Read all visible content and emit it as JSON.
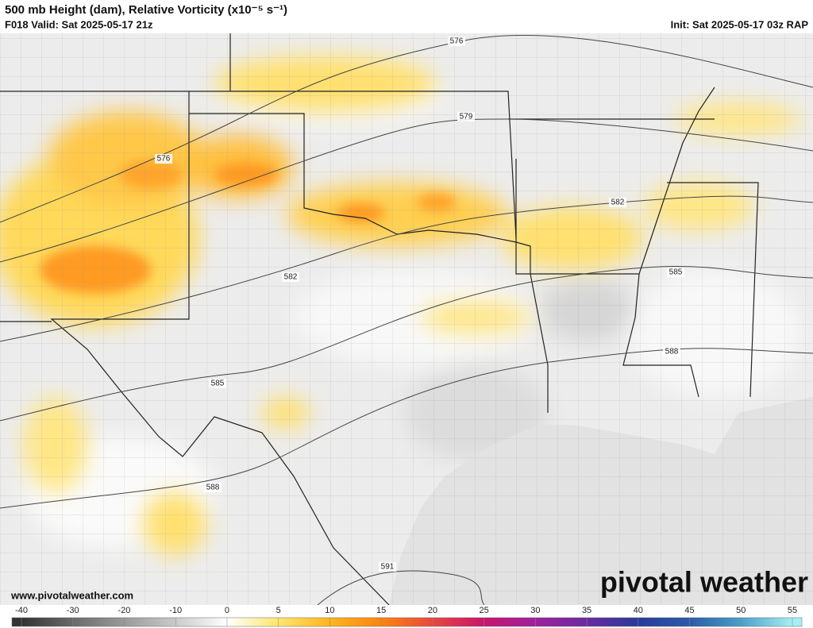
{
  "header": {
    "title": "500 mb Height (dam), Relative Vorticity (x10⁻⁵ s⁻¹)",
    "valid": "F018 Valid: Sat 2025-05-17 21z",
    "init": "Init: Sat 2025-05-17 03z RAP"
  },
  "map": {
    "height_contour_labels": [
      576,
      576,
      579,
      582,
      582,
      585,
      585,
      588,
      588,
      591
    ]
  },
  "footer": {
    "website": "www.pivotalweather.com",
    "logo": "pivotal weather"
  },
  "colorbar": {
    "ticks": [
      -40,
      -30,
      -20,
      -10,
      0,
      5,
      10,
      15,
      20,
      25,
      30,
      35,
      40,
      45,
      50,
      55
    ],
    "colors": [
      "#333333",
      "#6a6a6a",
      "#9a9a9a",
      "#cacaca",
      "#ffffff",
      "#ffe66b",
      "#ffb420",
      "#ff8410",
      "#e8483c",
      "#c8146e",
      "#a0209e",
      "#6a2aa0",
      "#2a3a9a",
      "#2c5aa8",
      "#4aa0c8",
      "#a8eef4"
    ]
  }
}
